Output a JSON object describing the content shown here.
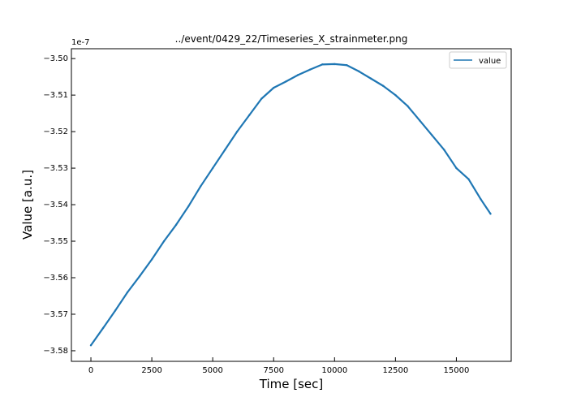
{
  "chart_data": {
    "type": "line",
    "title": "../event/0429_22/Timeseries_X_strainmeter.png",
    "xlabel": "Time [sec]",
    "ylabel": "Value [a.u.]",
    "y_offset_label": "1e-7",
    "xlim": [
      -800,
      17250
    ],
    "ylim": [
      -3.5829,
      -3.4973
    ],
    "x_ticks": [
      0,
      2500,
      5000,
      7500,
      10000,
      12500,
      15000
    ],
    "x_tick_labels": [
      "0",
      "2500",
      "5000",
      "7500",
      "10000",
      "12500",
      "15000"
    ],
    "y_ticks": [
      -3.58,
      -3.57,
      -3.56,
      -3.55,
      -3.54,
      -3.53,
      -3.52,
      -3.51,
      -3.5
    ],
    "y_tick_labels": [
      "−3.58",
      "−3.57",
      "−3.56",
      "−3.55",
      "−3.54",
      "−3.53",
      "−3.52",
      "−3.51",
      "−3.50"
    ],
    "grid": false,
    "legend_position": "top-right",
    "series": [
      {
        "name": "value",
        "color": "#1f77b4",
        "x": [
          0,
          500,
          1000,
          1500,
          2000,
          2500,
          3000,
          3500,
          4000,
          4500,
          5000,
          5500,
          6000,
          6500,
          7000,
          7500,
          8000,
          8500,
          9000,
          9500,
          10000,
          10500,
          11000,
          11500,
          12000,
          12500,
          13000,
          13500,
          14000,
          14500,
          15000,
          15500,
          16000,
          16400
        ],
        "y": [
          -3.5785,
          -3.5738,
          -3.569,
          -3.564,
          -3.5596,
          -3.555,
          -3.55,
          -3.5455,
          -3.5405,
          -3.535,
          -3.53,
          -3.525,
          -3.52,
          -3.5155,
          -3.511,
          -3.508,
          -3.5063,
          -3.5045,
          -3.503,
          -3.5016,
          -3.5015,
          -3.5018,
          -3.5035,
          -3.5055,
          -3.5075,
          -3.51,
          -3.513,
          -3.517,
          -3.521,
          -3.525,
          -3.53,
          -3.533,
          -3.5385,
          -3.5425
        ]
      }
    ]
  }
}
